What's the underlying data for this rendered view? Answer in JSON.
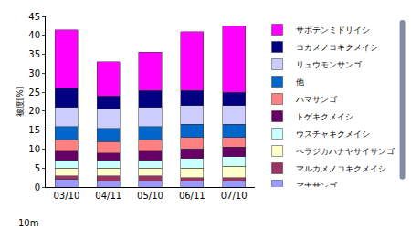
{
  "chart_data": {
    "type": "bar",
    "stacked": true,
    "grid": false,
    "legend": "right",
    "ylabel": "被度[%]",
    "annotations": [
      "10m"
    ],
    "categories": [
      "03/10",
      "04/11",
      "05/10",
      "06/11",
      "07/10"
    ],
    "ylim": [
      0,
      45
    ],
    "yticks": [
      0,
      5,
      10,
      15,
      20,
      25,
      30,
      35,
      40,
      45
    ],
    "series": [
      {
        "name": "アナサンゴ",
        "color": "#9999ff",
        "values": [
          2,
          1.5,
          1.5,
          1.5,
          1.5
        ]
      },
      {
        "name": "マルカメノコキクメイシ",
        "color": "#993366",
        "values": [
          1,
          1.5,
          1.5,
          1,
          1
        ]
      },
      {
        "name": "ヘラジカハナヤサイサンゴ",
        "color": "#ffffcc",
        "values": [
          2,
          2,
          2,
          2.5,
          3
        ]
      },
      {
        "name": "ウスチャキクメイシ",
        "color": "#ccffff",
        "values": [
          2,
          2,
          2,
          2.5,
          2.5
        ]
      },
      {
        "name": "トゲキクメイシ",
        "color": "#660066",
        "values": [
          2.5,
          2,
          2.5,
          2.5,
          2.5
        ]
      },
      {
        "name": "ハマサンゴ",
        "color": "#ff8080",
        "values": [
          3,
          3,
          3,
          3,
          2.5
        ]
      },
      {
        "name": "他",
        "color": "#0066cc",
        "values": [
          3.5,
          3.5,
          3.5,
          3.5,
          3.5
        ]
      },
      {
        "name": "リュウモンサンゴ",
        "color": "#ccccff",
        "values": [
          5,
          5,
          5,
          5,
          5
        ]
      },
      {
        "name": "コカメノコキクメイシ",
        "color": "#000080",
        "values": [
          5,
          3.5,
          4.5,
          4,
          3.5
        ]
      },
      {
        "name": "サボテンミドリイシ",
        "color": "#ff00ff",
        "values": [
          15.5,
          9,
          10,
          15.5,
          17.5
        ]
      }
    ]
  }
}
